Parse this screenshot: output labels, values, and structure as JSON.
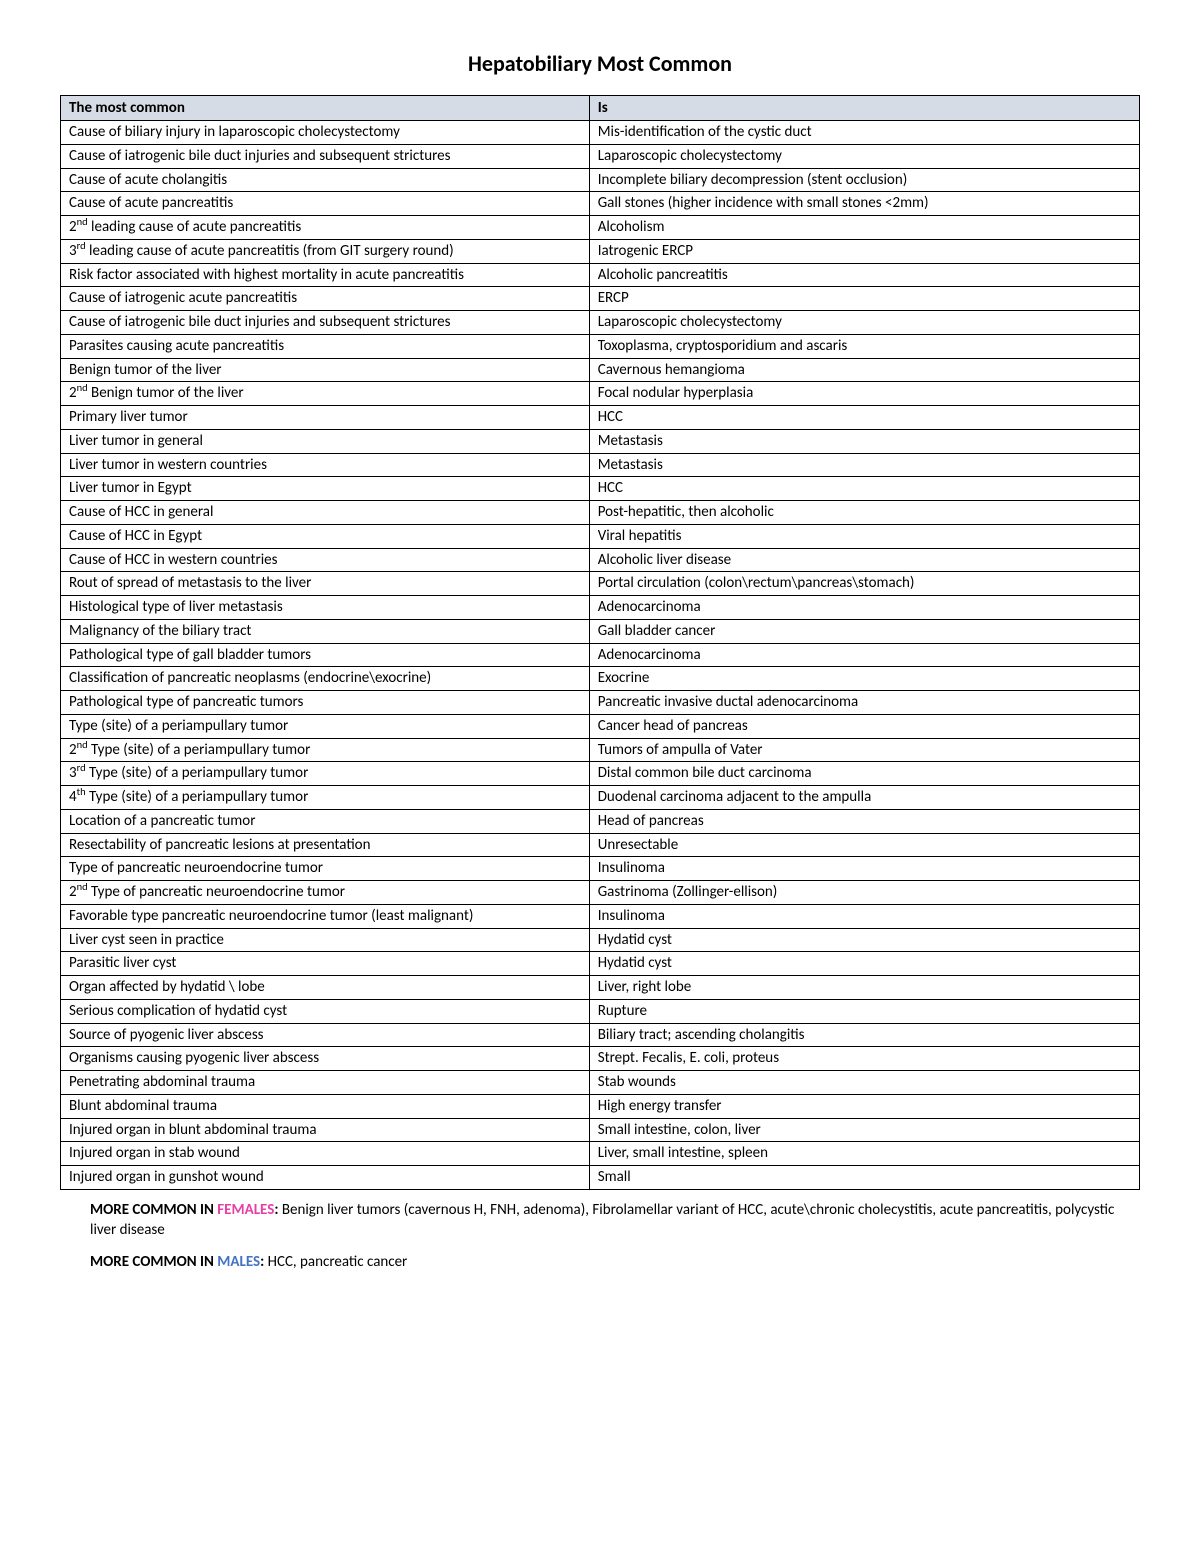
{
  "title": "Hepatobiliary Most Common",
  "table": {
    "header_bg": "#d6dce5",
    "columns": [
      "The most common",
      "Is"
    ],
    "rows": [
      {
        "l": "Cause of biliary injury in laparoscopic cholecystectomy",
        "r": "Mis-identification of the cystic duct"
      },
      {
        "l": "Cause of iatrogenic bile duct injuries and subsequent strictures",
        "r": "Laparoscopic cholecystectomy"
      },
      {
        "l": "Cause of acute cholangitis",
        "r": "Incomplete biliary decompression (stent occlusion)"
      },
      {
        "l": "Cause of acute pancreatitis",
        "r": "Gall stones (higher incidence with small stones <2mm)"
      },
      {
        "l": "2<sup>nd</sup> leading cause of acute pancreatitis",
        "r": "Alcoholism",
        "html_l": true
      },
      {
        "l": "3<sup>rd</sup> leading cause of acute pancreatitis (from GIT surgery round)",
        "r": "Iatrogenic ERCP",
        "html_l": true
      },
      {
        "l": "Risk factor associated with highest mortality in acute pancreatitis",
        "r": "Alcoholic pancreatitis"
      },
      {
        "l": "Cause of iatrogenic acute pancreatitis",
        "r": "ERCP"
      },
      {
        "l": "Cause of iatrogenic bile duct injuries and subsequent strictures",
        "r": "Laparoscopic cholecystectomy"
      },
      {
        "l": "Parasites causing acute pancreatitis",
        "r": "Toxoplasma, cryptosporidium and ascaris"
      },
      {
        "l": "Benign tumor of the liver",
        "r": "Cavernous hemangioma"
      },
      {
        "l": "2<sup>nd</sup> Benign tumor of the liver",
        "r": "Focal nodular hyperplasia",
        "html_l": true
      },
      {
        "l": "Primary liver tumor",
        "r": "HCC"
      },
      {
        "l": "Liver tumor in general",
        "r": "Metastasis"
      },
      {
        "l": "Liver tumor in western countries",
        "r": "Metastasis"
      },
      {
        "l": "Liver tumor in Egypt",
        "r": "HCC"
      },
      {
        "l": "Cause of HCC in general",
        "r": "Post-hepatitic, then alcoholic"
      },
      {
        "l": "Cause of HCC in Egypt",
        "r": "Viral hepatitis"
      },
      {
        "l": "Cause of HCC in western countries",
        "r": "Alcoholic liver disease"
      },
      {
        "l": "Rout of spread of metastasis to the liver",
        "r": "Portal circulation (colon\\rectum\\pancreas\\stomach)"
      },
      {
        "l": "Histological type of liver metastasis",
        "r": "Adenocarcinoma"
      },
      {
        "l": "Malignancy of the biliary tract",
        "r": "Gall bladder cancer"
      },
      {
        "l": "Pathological type of gall bladder tumors",
        "r": "Adenocarcinoma"
      },
      {
        "l": "Classification of pancreatic neoplasms (endocrine\\exocrine)",
        "r": "Exocrine"
      },
      {
        "l": "Pathological type of pancreatic tumors",
        "r": "Pancreatic invasive ductal adenocarcinoma"
      },
      {
        "l": "Type (site) of a periampullary tumor",
        "r": "Cancer head of pancreas"
      },
      {
        "l": "2<sup>nd</sup> Type (site) of a periampullary tumor",
        "r": "Tumors of ampulla of Vater",
        "html_l": true
      },
      {
        "l": "3<sup>rd</sup> Type (site) of a periampullary tumor",
        "r": "Distal common bile duct carcinoma",
        "html_l": true
      },
      {
        "l": "4<sup>th</sup> Type (site) of a periampullary tumor",
        "r": "Duodenal carcinoma adjacent to the ampulla",
        "html_l": true
      },
      {
        "l": "Location of a pancreatic tumor",
        "r": "Head of pancreas"
      },
      {
        "l": "Resectability of pancreatic lesions at presentation",
        "r": "Unresectable"
      },
      {
        "l": "Type of pancreatic neuroendocrine tumor",
        "r": "Insulinoma"
      },
      {
        "l": "2<sup>nd</sup> Type of pancreatic neuroendocrine tumor",
        "r": "Gastrinoma (Zollinger-ellison)",
        "html_l": true
      },
      {
        "l": "Favorable type pancreatic neuroendocrine tumor (least malignant)",
        "r": "Insulinoma"
      },
      {
        "l": "Liver cyst seen in practice",
        "r": "Hydatid cyst"
      },
      {
        "l": "Parasitic liver cyst",
        "r": "Hydatid cyst"
      },
      {
        "l": "Organ affected by hydatid \\ lobe",
        "r": "Liver, right lobe"
      },
      {
        "l": "Serious complication of hydatid cyst",
        "r": "Rupture"
      },
      {
        "l": "Source of pyogenic liver abscess",
        "r": "Biliary tract; ascending cholangitis"
      },
      {
        "l": "Organisms causing pyogenic liver abscess",
        "r": "Strept. Fecalis, E. coli, proteus"
      },
      {
        "l": "Penetrating abdominal trauma",
        "r": "Stab wounds"
      },
      {
        "l": "Blunt abdominal trauma",
        "r": "High energy transfer"
      },
      {
        "l": "Injured organ in blunt abdominal trauma",
        "r": "Small intestine, colon, liver"
      },
      {
        "l": "Injured organ in stab wound",
        "r": "Liver, small intestine, spleen"
      },
      {
        "l": "Injured organ in gunshot wound",
        "r": "Small"
      }
    ]
  },
  "footnotes": {
    "females": {
      "label": "MORE COMMON IN ",
      "highlight": "FEMALES",
      "highlight_color": "#e83ea8",
      "suffix": ": ",
      "text": "Benign liver tumors (cavernous H, FNH, adenoma), Fibrolamellar variant of HCC, acute\\chronic cholecystitis, acute pancreatitis, polycystic liver disease"
    },
    "males": {
      "label": "MORE COMMON IN ",
      "highlight": "MALES",
      "highlight_color": "#4472c4",
      "suffix": ": ",
      "text": "HCC, pancreatic cancer"
    }
  }
}
